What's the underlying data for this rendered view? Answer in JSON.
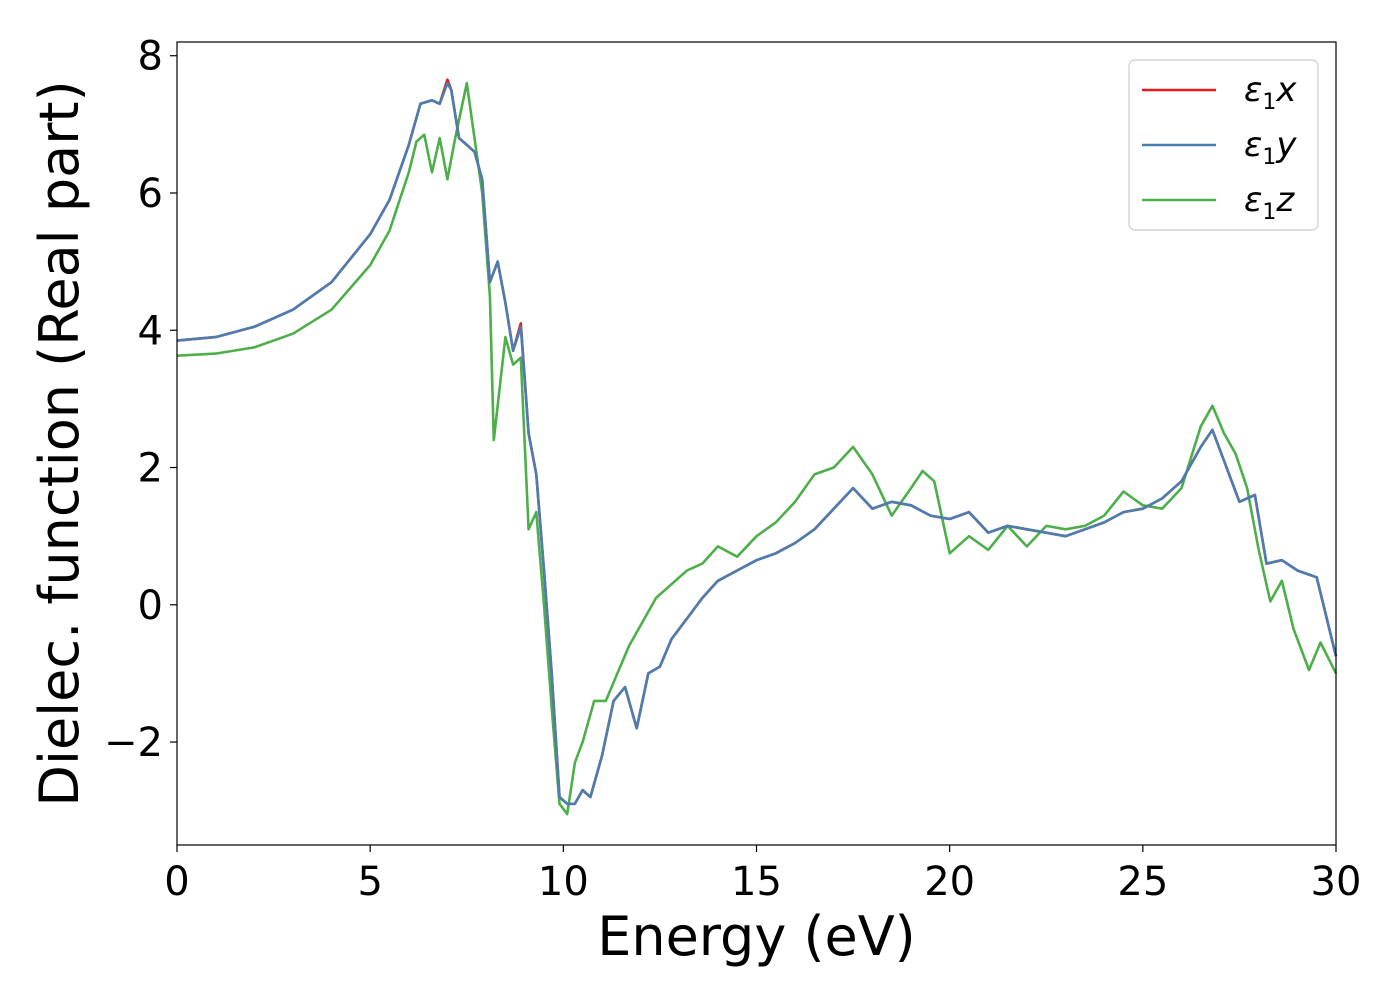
{
  "chart_data": {
    "type": "line",
    "title": "",
    "xlabel": "Energy (eV)",
    "ylabel": "Dielec. function (Real part)",
    "xlim": [
      0,
      30
    ],
    "ylim": [
      -3.5,
      8.2
    ],
    "xticks": [
      0,
      5,
      10,
      15,
      20,
      25,
      30
    ],
    "xtick_labels": [
      "0",
      "5",
      "10",
      "15",
      "20",
      "25",
      "30"
    ],
    "yticks": [
      -2,
      0,
      2,
      4,
      6,
      8
    ],
    "ytick_labels": [
      "−2",
      "0",
      "2",
      "4",
      "6",
      "8"
    ],
    "grid": false,
    "legend_position": "top-right",
    "series": [
      {
        "name": "ε1x",
        "legend_main": "ε",
        "legend_sub": "1",
        "legend_tail": "x",
        "color": "#e41a1c",
        "x": [
          0,
          1,
          2,
          3,
          4,
          5,
          5.5,
          6,
          6.3,
          6.6,
          6.8,
          7.0,
          7.1,
          7.3,
          7.5,
          7.7,
          7.9,
          8.1,
          8.3,
          8.5,
          8.7,
          8.9,
          9.1,
          9.3,
          9.5,
          9.7,
          9.9,
          10.1,
          10.3,
          10.5,
          10.7,
          11.0,
          11.3,
          11.6,
          11.9,
          12.2,
          12.5,
          12.8,
          13.2,
          13.6,
          14.0,
          14.5,
          15.0,
          15.5,
          16.0,
          16.5,
          17.0,
          17.5,
          18.0,
          18.5,
          19.0,
          19.5,
          20.0,
          20.5,
          21.0,
          21.5,
          22.0,
          22.5,
          23.0,
          23.5,
          24.0,
          24.5,
          25.0,
          25.5,
          26.0,
          26.5,
          26.8,
          27.1,
          27.5,
          27.9,
          28.2,
          28.6,
          29.0,
          29.5,
          30.0
        ],
        "values": [
          3.85,
          3.9,
          4.05,
          4.3,
          4.7,
          5.4,
          5.9,
          6.7,
          7.3,
          7.35,
          7.3,
          7.65,
          7.5,
          6.8,
          6.7,
          6.6,
          6.2,
          4.7,
          5.0,
          4.4,
          3.7,
          4.1,
          2.5,
          1.9,
          0.5,
          -1.0,
          -2.8,
          -2.9,
          -2.9,
          -2.7,
          -2.8,
          -2.2,
          -1.4,
          -1.2,
          -1.8,
          -1.0,
          -0.9,
          -0.5,
          -0.2,
          0.1,
          0.35,
          0.5,
          0.65,
          0.75,
          0.9,
          1.1,
          1.4,
          1.7,
          1.4,
          1.5,
          1.45,
          1.3,
          1.25,
          1.35,
          1.05,
          1.15,
          1.1,
          1.05,
          1.0,
          1.1,
          1.2,
          1.35,
          1.4,
          1.55,
          1.8,
          2.3,
          2.55,
          2.1,
          1.5,
          1.6,
          0.6,
          0.65,
          0.5,
          0.4,
          -0.75
        ]
      },
      {
        "name": "ε1y",
        "legend_main": "ε",
        "legend_sub": "1",
        "legend_tail": "y",
        "color": "#4a7eb0",
        "x": [
          0,
          1,
          2,
          3,
          4,
          5,
          5.5,
          6,
          6.3,
          6.6,
          6.8,
          7.0,
          7.1,
          7.3,
          7.5,
          7.7,
          7.9,
          8.1,
          8.3,
          8.5,
          8.7,
          8.9,
          9.1,
          9.3,
          9.5,
          9.7,
          9.9,
          10.1,
          10.3,
          10.5,
          10.7,
          11.0,
          11.3,
          11.6,
          11.9,
          12.2,
          12.5,
          12.8,
          13.2,
          13.6,
          14.0,
          14.5,
          15.0,
          15.5,
          16.0,
          16.5,
          17.0,
          17.5,
          18.0,
          18.5,
          19.0,
          19.5,
          20.0,
          20.5,
          21.0,
          21.5,
          22.0,
          22.5,
          23.0,
          23.5,
          24.0,
          24.5,
          25.0,
          25.5,
          26.0,
          26.5,
          26.8,
          27.1,
          27.5,
          27.9,
          28.2,
          28.6,
          29.0,
          29.5,
          30.0
        ],
        "values": [
          3.85,
          3.9,
          4.05,
          4.3,
          4.7,
          5.4,
          5.9,
          6.7,
          7.3,
          7.35,
          7.3,
          7.6,
          7.5,
          6.8,
          6.7,
          6.6,
          6.2,
          4.7,
          5.0,
          4.4,
          3.7,
          4.05,
          2.5,
          1.9,
          0.5,
          -1.0,
          -2.8,
          -2.9,
          -2.9,
          -2.7,
          -2.8,
          -2.2,
          -1.4,
          -1.2,
          -1.8,
          -1.0,
          -0.9,
          -0.5,
          -0.2,
          0.1,
          0.35,
          0.5,
          0.65,
          0.75,
          0.9,
          1.1,
          1.4,
          1.7,
          1.4,
          1.5,
          1.45,
          1.3,
          1.25,
          1.35,
          1.05,
          1.15,
          1.1,
          1.05,
          1.0,
          1.1,
          1.2,
          1.35,
          1.4,
          1.55,
          1.8,
          2.3,
          2.55,
          2.1,
          1.5,
          1.6,
          0.6,
          0.65,
          0.5,
          0.4,
          -0.75
        ]
      },
      {
        "name": "ε1z",
        "legend_main": "ε",
        "legend_sub": "1",
        "legend_tail": "z",
        "color": "#4daf4a",
        "x": [
          0,
          1,
          2,
          3,
          4,
          5,
          5.5,
          6,
          6.2,
          6.4,
          6.6,
          6.8,
          7.0,
          7.2,
          7.5,
          7.7,
          7.9,
          8.1,
          8.2,
          8.5,
          8.7,
          8.9,
          9.1,
          9.3,
          9.5,
          9.7,
          9.9,
          10.1,
          10.3,
          10.5,
          10.8,
          11.1,
          11.4,
          11.7,
          12.0,
          12.4,
          12.8,
          13.2,
          13.6,
          14.0,
          14.5,
          15.0,
          15.5,
          16.0,
          16.5,
          17.0,
          17.5,
          18.0,
          18.5,
          19.0,
          19.3,
          19.6,
          20.0,
          20.5,
          21.0,
          21.5,
          22.0,
          22.5,
          23.0,
          23.5,
          24.0,
          24.5,
          25.0,
          25.5,
          26.0,
          26.5,
          26.8,
          27.1,
          27.4,
          27.7,
          28.0,
          28.3,
          28.6,
          28.9,
          29.3,
          29.6,
          30.0
        ],
        "values": [
          3.63,
          3.66,
          3.75,
          3.95,
          4.3,
          4.95,
          5.45,
          6.3,
          6.75,
          6.85,
          6.3,
          6.8,
          6.2,
          6.8,
          7.6,
          6.8,
          6.0,
          4.5,
          2.4,
          3.9,
          3.5,
          3.6,
          1.1,
          1.35,
          0.0,
          -1.5,
          -2.9,
          -3.05,
          -2.3,
          -2.0,
          -1.4,
          -1.4,
          -1.0,
          -0.6,
          -0.3,
          0.1,
          0.3,
          0.5,
          0.6,
          0.85,
          0.7,
          1.0,
          1.2,
          1.5,
          1.9,
          2.0,
          2.3,
          1.9,
          1.3,
          1.7,
          1.95,
          1.8,
          0.75,
          1.0,
          0.8,
          1.15,
          0.85,
          1.15,
          1.1,
          1.15,
          1.3,
          1.65,
          1.45,
          1.4,
          1.7,
          2.6,
          2.9,
          2.5,
          2.2,
          1.7,
          0.8,
          0.05,
          0.35,
          -0.35,
          -0.95,
          -0.55,
          -1.0
        ]
      }
    ]
  }
}
